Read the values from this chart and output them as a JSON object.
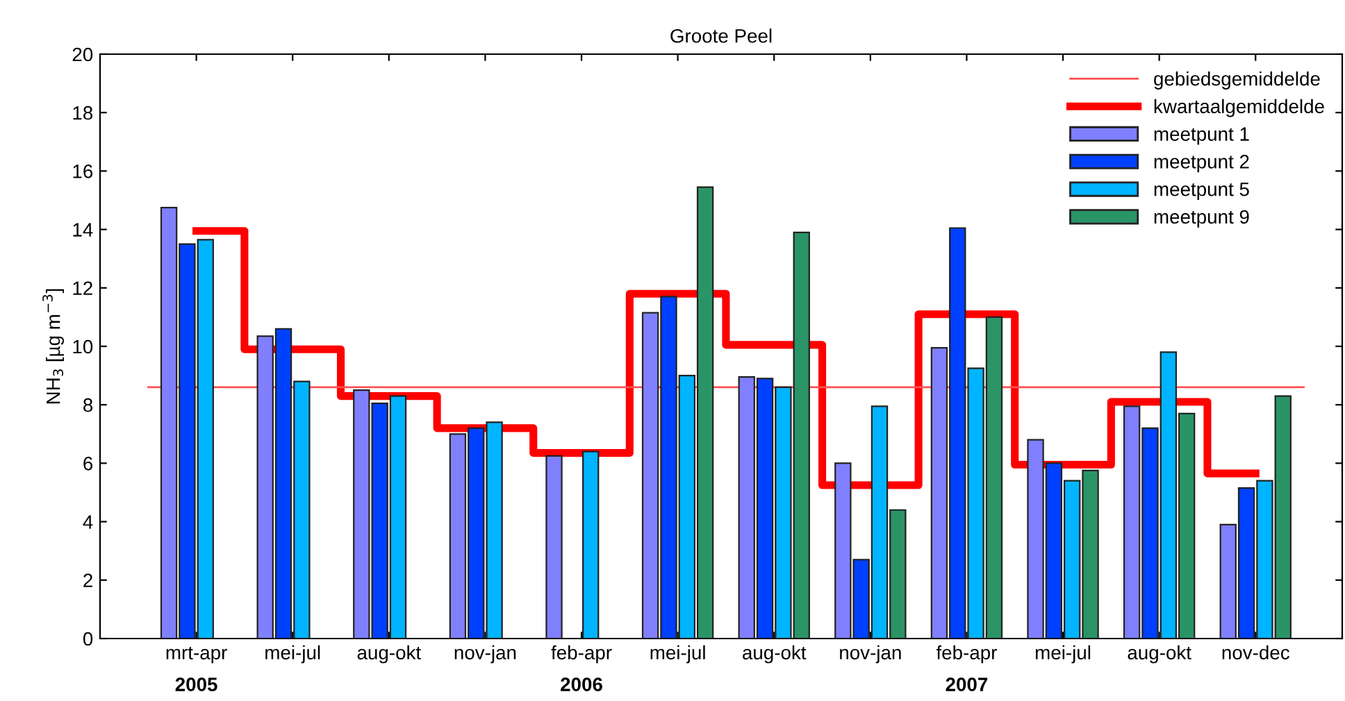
{
  "chart_data": {
    "type": "bar",
    "title": "Groote Peel",
    "ylabel": "NH$_{3}$ [µg m$^{−3}$]",
    "categories": [
      "mrt-apr\n2005",
      "mei-jul",
      "aug-okt",
      "nov-jan",
      "feb-apr\n2006",
      "mei-jul",
      "aug-okt",
      "nov-jan",
      "feb-apr\n2007",
      "mei-jul",
      "aug-okt",
      "nov-dec"
    ],
    "series": [
      {
        "name": "kwartaalgemiddelde",
        "type": "step",
        "color": "#ff0000",
        "values": [
          13.95,
          9.9,
          8.3,
          7.2,
          6.35,
          11.8,
          10.05,
          5.25,
          11.1,
          5.95,
          8.1,
          5.65
        ]
      },
      {
        "name": "meetpunt 1",
        "color": "#8080ff",
        "values": [
          14.75,
          10.35,
          8.5,
          7.0,
          6.25,
          11.15,
          8.95,
          6.0,
          9.95,
          6.8,
          7.95,
          3.9
        ]
      },
      {
        "name": "meetpunt 2",
        "color": "#0040ff",
        "values": [
          13.5,
          10.6,
          8.05,
          7.2,
          null,
          11.7,
          8.9,
          2.7,
          14.05,
          6.0,
          7.2,
          5.15
        ]
      },
      {
        "name": "meetpunt 5",
        "color": "#00b4ff",
        "values": [
          13.65,
          8.8,
          8.3,
          7.4,
          6.4,
          9.0,
          8.6,
          7.95,
          9.25,
          5.4,
          9.8,
          5.4
        ]
      },
      {
        "name": "meetpunt 9",
        "color": "#2a9466",
        "values": [
          null,
          null,
          null,
          null,
          null,
          15.45,
          13.9,
          4.4,
          11.0,
          5.75,
          7.7,
          8.3
        ]
      }
    ],
    "ref_lines": [
      {
        "axis": "y",
        "value": 8.6,
        "label": "gebiedsgemiddelde",
        "color": "#ff5050"
      }
    ],
    "ylim": [
      0,
      20
    ],
    "yticks": [
      0,
      2,
      4,
      6,
      8,
      10,
      12,
      14,
      16,
      18,
      20
    ],
    "legend": "top right",
    "grid": false
  }
}
